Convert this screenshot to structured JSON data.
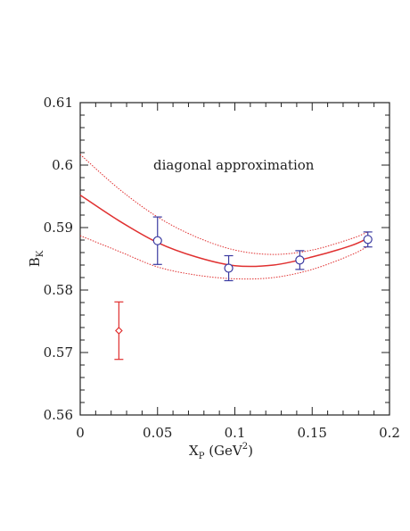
{
  "chart_data": {
    "type": "scatter",
    "xlabel": {
      "main": "X",
      "sub": "P",
      "rest": " (GeV",
      "sup": "2",
      "close": ")"
    },
    "ylabel": {
      "main": "B",
      "sub": "K"
    },
    "annotation": "diagonal approximation",
    "xlim": [
      0,
      0.2
    ],
    "ylim": [
      0.56,
      0.61
    ],
    "xticks": [
      "0",
      "0.05",
      "0.1",
      "0.15",
      "0.2"
    ],
    "yticks": [
      "0.56",
      "0.57",
      "0.58",
      "0.59",
      "0.6",
      "0.61"
    ],
    "grid": false,
    "series": [
      {
        "marker": "circle",
        "color": "#3a3aa0",
        "points": [
          {
            "x": 0.05,
            "y": 0.5879,
            "yerr": 0.0038
          },
          {
            "x": 0.096,
            "y": 0.5835,
            "yerr": 0.002
          },
          {
            "x": 0.142,
            "y": 0.5848,
            "yerr": 0.0015
          },
          {
            "x": 0.186,
            "y": 0.5881,
            "yerr": 0.0012
          }
        ]
      },
      {
        "marker": "diamond",
        "color": "#e03030",
        "points": [
          {
            "x": 0.025,
            "y": 0.5735,
            "yerr": 0.0046
          }
        ]
      }
    ],
    "fit": {
      "color": "#e03030",
      "x": [
        0,
        0.025,
        0.05,
        0.075,
        0.1,
        0.125,
        0.15,
        0.175,
        0.186
      ],
      "central": [
        0.5952,
        0.5911,
        0.5876,
        0.5853,
        0.5839,
        0.584,
        0.5853,
        0.5871,
        0.5883
      ],
      "upper": [
        0.6017,
        0.5962,
        0.5917,
        0.5885,
        0.5864,
        0.5857,
        0.5864,
        0.5882,
        0.5893
      ],
      "lower": [
        0.5887,
        0.5862,
        0.5837,
        0.5824,
        0.5818,
        0.582,
        0.5833,
        0.5856,
        0.587
      ]
    }
  }
}
